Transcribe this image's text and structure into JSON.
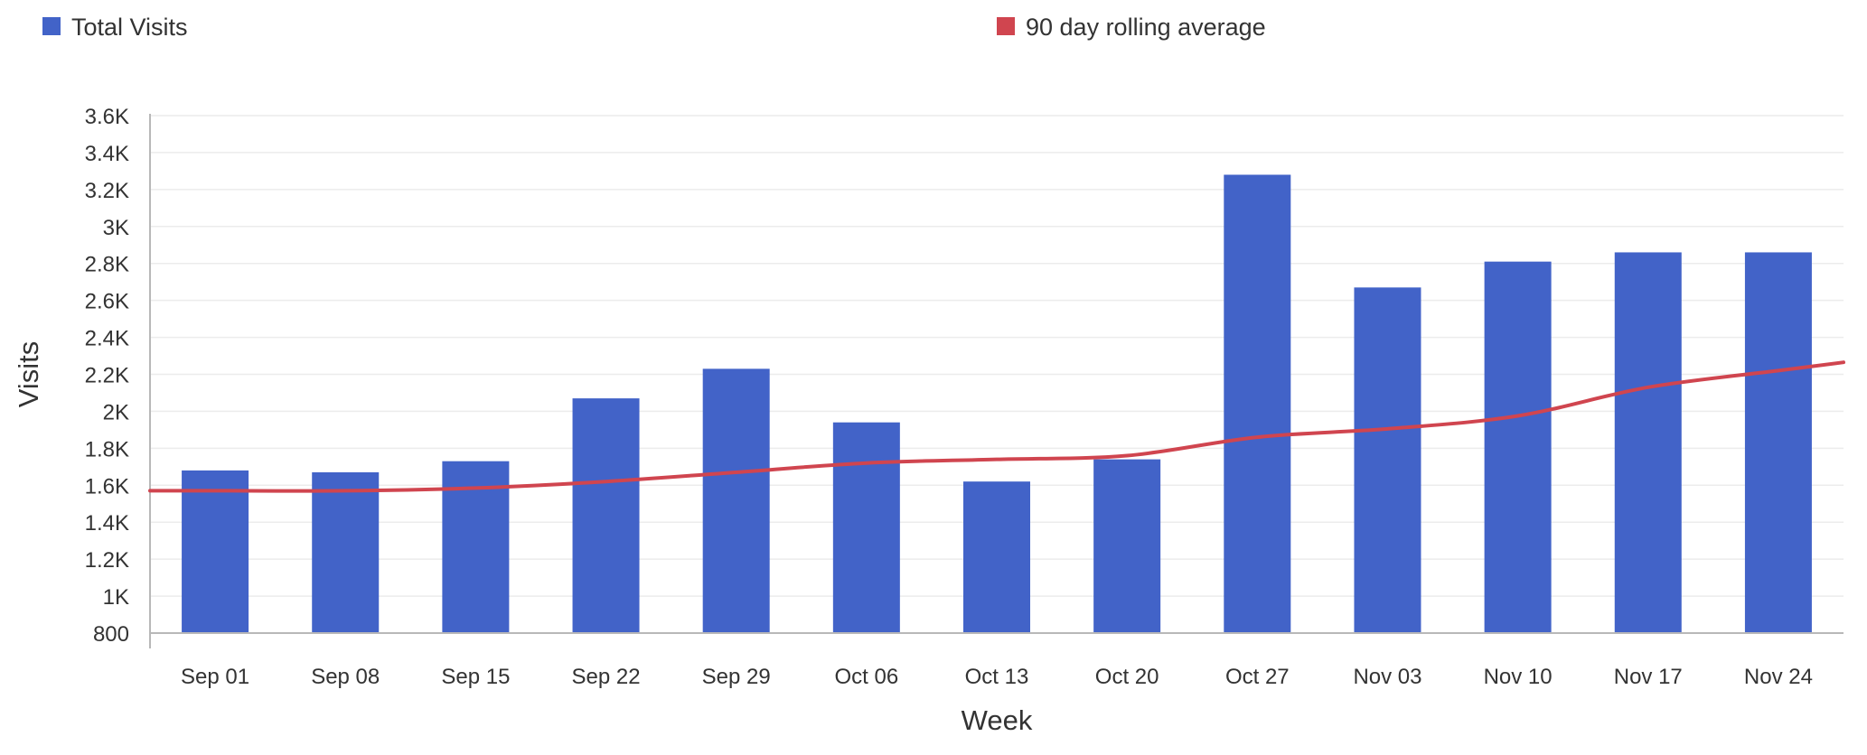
{
  "chart_data": {
    "type": "bar",
    "categories": [
      "Sep 01",
      "Sep 08",
      "Sep 15",
      "Sep 22",
      "Sep 29",
      "Oct 06",
      "Oct 13",
      "Oct 20",
      "Oct 27",
      "Nov 03",
      "Nov 10",
      "Nov 17",
      "Nov 24"
    ],
    "series": [
      {
        "name": "Total Visits",
        "type": "bar",
        "color": "#4263c8",
        "values": [
          1680,
          1670,
          1730,
          2070,
          2230,
          1940,
          1620,
          1740,
          3280,
          2670,
          2810,
          2860,
          2860
        ]
      },
      {
        "name": "90 day rolling average",
        "type": "line",
        "color": "#d0454f",
        "values": [
          1570,
          1570,
          1585,
          1620,
          1670,
          1720,
          1740,
          1760,
          1860,
          1905,
          1975,
          2130,
          2220
        ]
      }
    ],
    "xlabel": "Week",
    "ylabel": "Visits",
    "ylim": [
      800,
      3600
    ],
    "yticks": [
      "800",
      "1K",
      "1.2K",
      "1.4K",
      "1.6K",
      "1.8K",
      "2K",
      "2.2K",
      "2.4K",
      "2.6K",
      "2.8K",
      "3K",
      "3.2K",
      "3.4K",
      "3.6K"
    ],
    "grid": true,
    "legend_position": "top"
  }
}
